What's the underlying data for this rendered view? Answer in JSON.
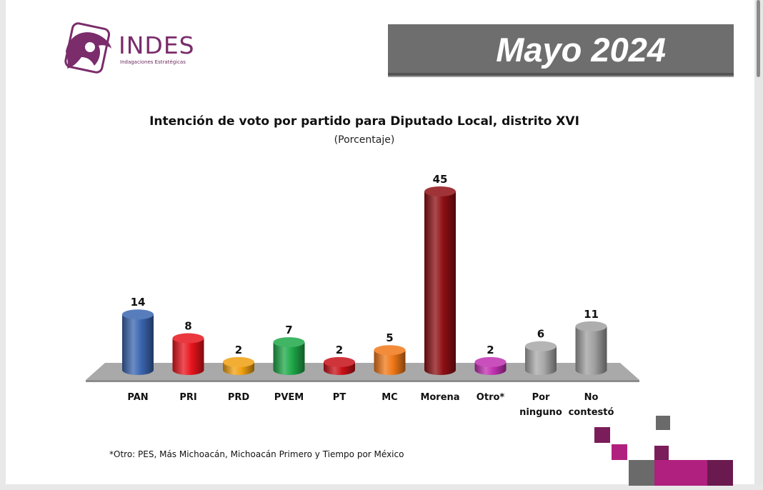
{
  "header": {
    "brand": "INDES",
    "tagline": "Indagaciones Estratégicas",
    "date_banner": "Mayo 2024"
  },
  "colors": {
    "logo": "#7a2c6b",
    "banner": "#6e6e6e",
    "floor": "#a8a8a8"
  },
  "chart_data": {
    "type": "bar",
    "title": "Intención de voto por partido para Diputado Local, distrito XVI",
    "subtitle": "(Porcentaje)",
    "categories": [
      "PAN",
      "PRI",
      "PRD",
      "PVEM",
      "PT",
      "MC",
      "Morena",
      "Otro*",
      "Por ninguno",
      "No contestó"
    ],
    "category_lines": [
      [
        "PAN"
      ],
      [
        "PRI"
      ],
      [
        "PRD"
      ],
      [
        "PVEM"
      ],
      [
        "PT"
      ],
      [
        "MC"
      ],
      [
        "Morena"
      ],
      [
        "Otro*"
      ],
      [
        "Por",
        "ninguno"
      ],
      [
        "No",
        "contestó"
      ]
    ],
    "values": [
      14,
      8,
      2,
      7,
      2,
      5,
      45,
      2,
      6,
      11
    ],
    "value_labels": [
      "14",
      "8",
      "2",
      "7",
      "2",
      "5",
      "45",
      "2",
      "6",
      "11"
    ],
    "colors": [
      "#3a66b0",
      "#e8141c",
      "#f0a010",
      "#1ea848",
      "#c81018",
      "#f07818",
      "#8e0f14",
      "#c030b0",
      "#a8a8a8",
      "#a0a0a0"
    ],
    "ylim": [
      0,
      45
    ],
    "grid": false,
    "legend": "none"
  },
  "footnote": "*Otro: PES, Más Michoacán, Michoacán Primero y Tiempo por México"
}
